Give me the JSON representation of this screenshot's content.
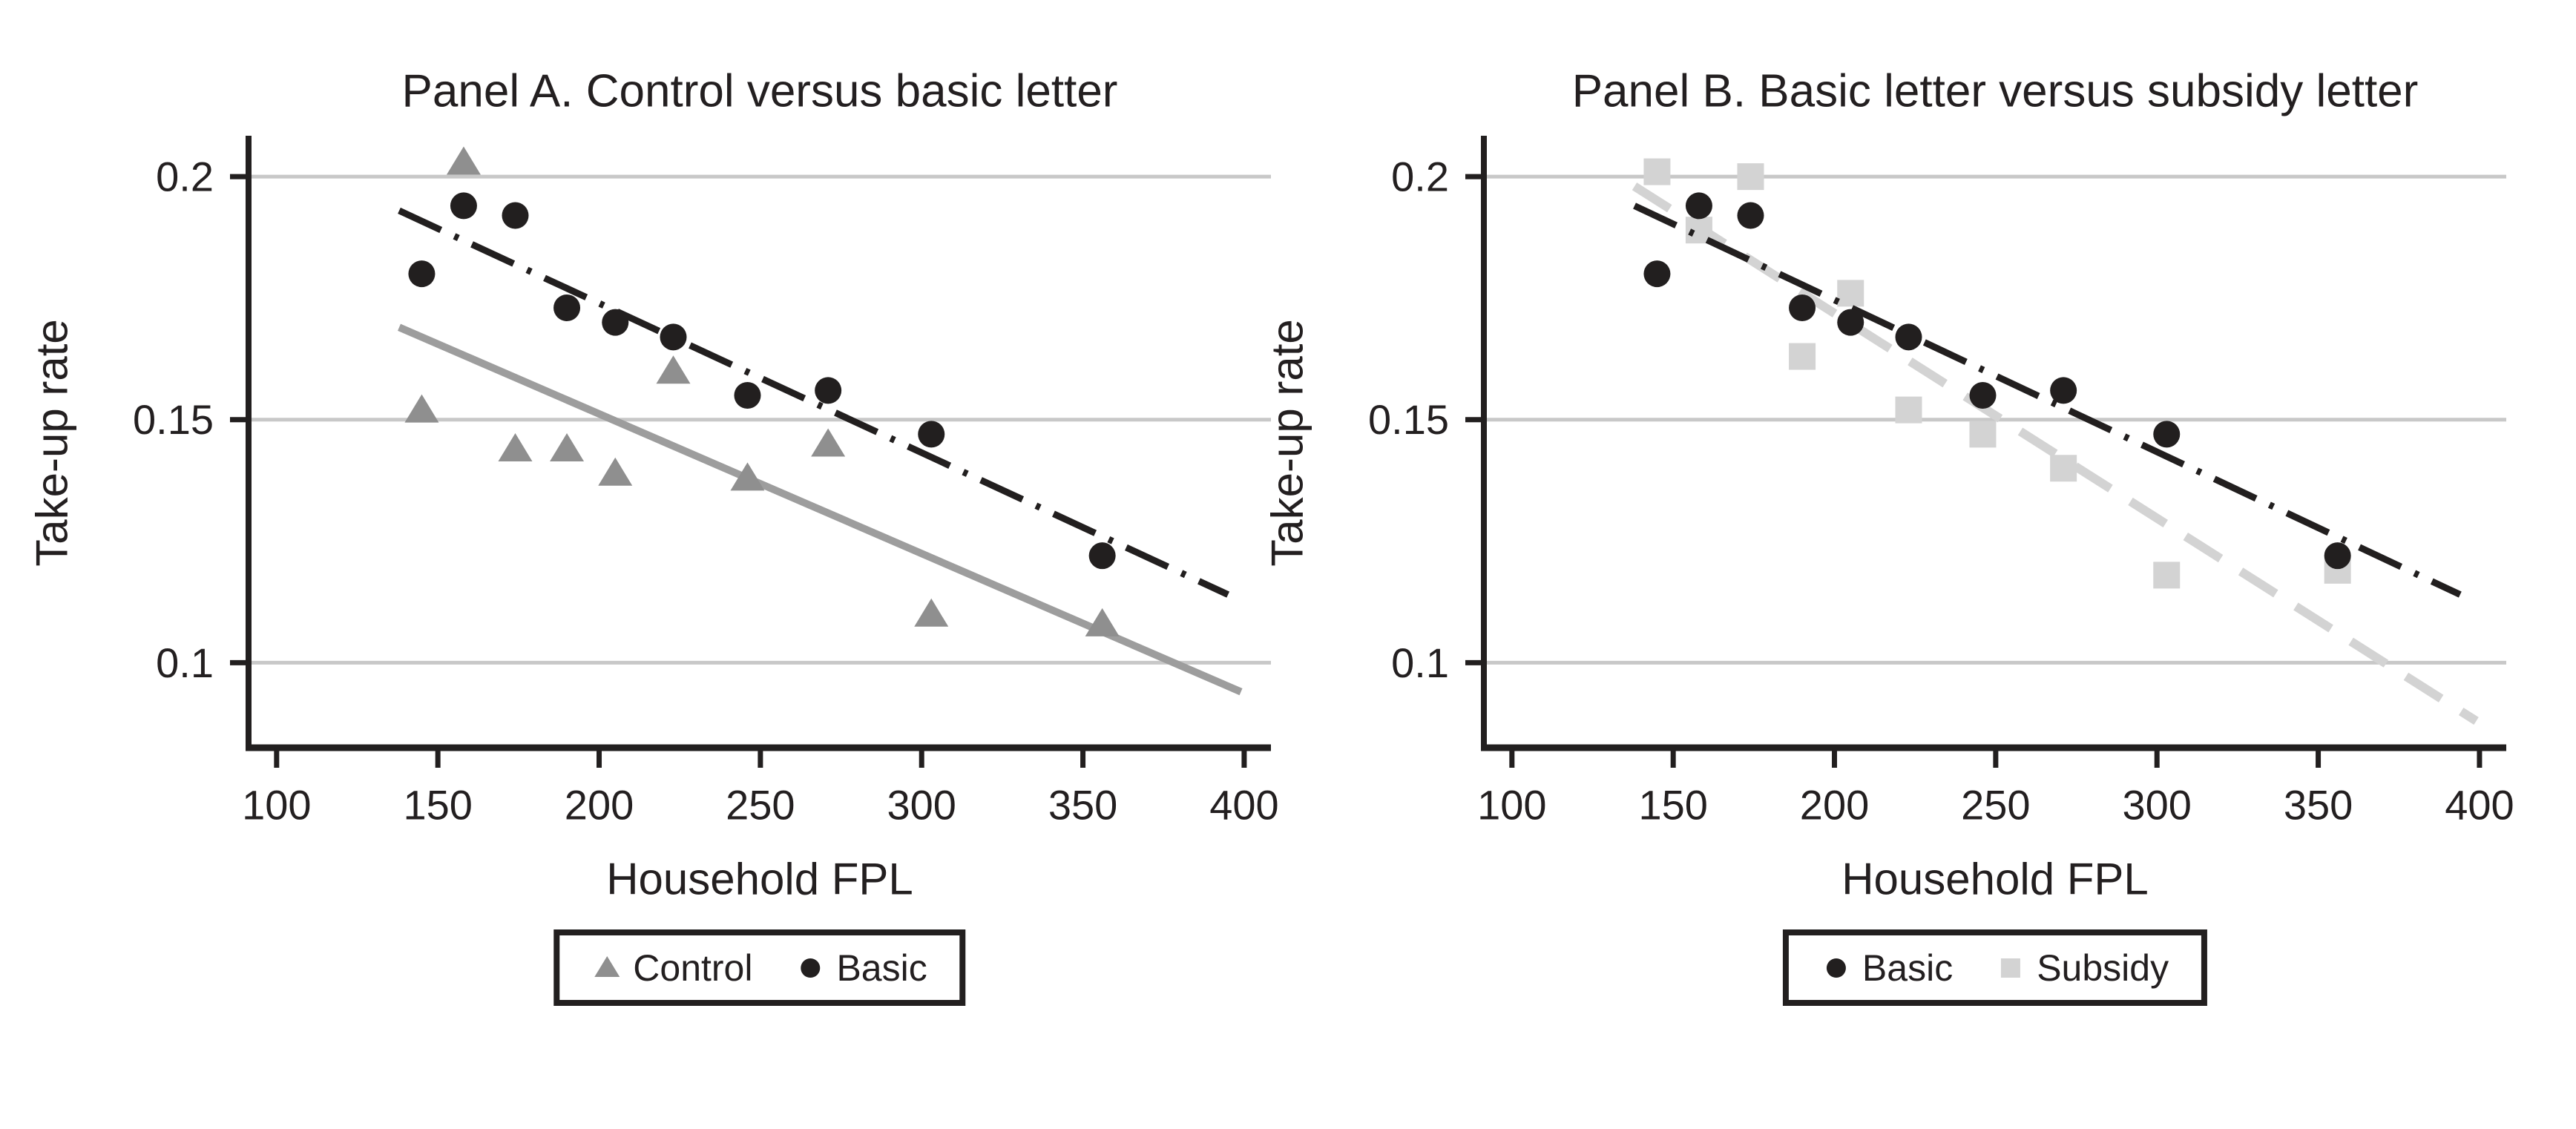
{
  "figure": {
    "background": "#ffffff",
    "panels": [
      {
        "title": "Panel A. Control versus basic letter",
        "xlabel": "Household FPL",
        "ylabel": "Take-up rate"
      },
      {
        "title": "Panel B. Basic letter versus subsidy letter",
        "xlabel": "Household FPL",
        "ylabel": "Take-up rate"
      }
    ],
    "colors": {
      "black": "#221f1f",
      "control_marker_gray": "#8f8f8f",
      "control_line_gray": "#9d9d9d",
      "subsidy_light_gray": "#d3d3d3",
      "gridline_gray": "#c8c8c8",
      "text": "#231f20"
    }
  },
  "chart_data": [
    {
      "type": "scatter",
      "title": "Panel A. Control versus basic letter",
      "xlabel": "Household FPL",
      "ylabel": "Take-up rate",
      "xlim": [
        91.3,
        408.3
      ],
      "ylim": [
        0.0825,
        0.2078
      ],
      "x_ticks": [
        100,
        150,
        200,
        250,
        300,
        350,
        400
      ],
      "x_tick_labels": [
        "100",
        "150",
        "200",
        "250",
        "300",
        "350",
        "400"
      ],
      "y_ticks": [
        0.1,
        0.15,
        0.2
      ],
      "y_tick_labels": [
        "0.1",
        "0.15",
        "0.2"
      ],
      "grid": "horizontal",
      "legend_position": "bottom-center",
      "legend_order": [
        "Control",
        "Basic"
      ],
      "series": [
        {
          "name": "Control",
          "marker": "triangle",
          "color": "#8f8f8f",
          "x": [
            145,
            158,
            174,
            190,
            205,
            223,
            246,
            271,
            303,
            356
          ],
          "y": [
            0.152,
            0.203,
            0.144,
            0.144,
            0.139,
            0.16,
            0.138,
            0.145,
            0.11,
            0.108
          ],
          "fit_line": {
            "style": "solid",
            "color": "#9d9d9d",
            "x1": 138,
            "y1": 0.169,
            "x2": 399,
            "y2": 0.094
          }
        },
        {
          "name": "Basic",
          "marker": "circle",
          "color": "#221f1f",
          "x": [
            145,
            158,
            174,
            190,
            205,
            223,
            246,
            271,
            303,
            356
          ],
          "y": [
            0.18,
            0.194,
            0.192,
            0.173,
            0.17,
            0.167,
            0.155,
            0.156,
            0.147,
            0.122
          ],
          "fit_line": {
            "style": "dashdot",
            "color": "#221f1f",
            "x1": 138,
            "y1": 0.193,
            "x2": 395,
            "y2": 0.114
          }
        }
      ]
    },
    {
      "type": "scatter",
      "title": "Panel B. Basic letter versus subsidy letter",
      "xlabel": "Household FPL",
      "ylabel": "Take-up rate",
      "xlim": [
        91.3,
        408.3
      ],
      "ylim": [
        0.0825,
        0.2078
      ],
      "x_ticks": [
        100,
        150,
        200,
        250,
        300,
        350,
        400
      ],
      "x_tick_labels": [
        "100",
        "150",
        "200",
        "250",
        "300",
        "350",
        "400"
      ],
      "y_ticks": [
        0.1,
        0.15,
        0.2
      ],
      "y_tick_labels": [
        "0.1",
        "0.15",
        "0.2"
      ],
      "grid": "horizontal",
      "legend_position": "bottom-center",
      "legend_order": [
        "Basic",
        "Subsidy"
      ],
      "series": [
        {
          "name": "Subsidy",
          "marker": "square",
          "color": "#d3d3d3",
          "x": [
            145,
            158,
            174,
            190,
            205,
            223,
            246,
            271,
            303,
            356
          ],
          "y": [
            0.201,
            0.189,
            0.2,
            0.163,
            0.176,
            0.152,
            0.147,
            0.14,
            0.118,
            0.119
          ],
          "fit_line": {
            "style": "dashed",
            "color": "#d3d3d3",
            "x1": 138,
            "y1": 0.198,
            "x2": 399,
            "y2": 0.088
          }
        },
        {
          "name": "Basic",
          "marker": "circle",
          "color": "#221f1f",
          "x": [
            145,
            158,
            174,
            190,
            205,
            223,
            246,
            271,
            303,
            356
          ],
          "y": [
            0.18,
            0.194,
            0.192,
            0.173,
            0.17,
            0.167,
            0.155,
            0.156,
            0.147,
            0.122
          ],
          "fit_line": {
            "style": "dashdot",
            "color": "#221f1f",
            "x1": 138,
            "y1": 0.194,
            "x2": 394,
            "y2": 0.114
          }
        }
      ]
    }
  ]
}
